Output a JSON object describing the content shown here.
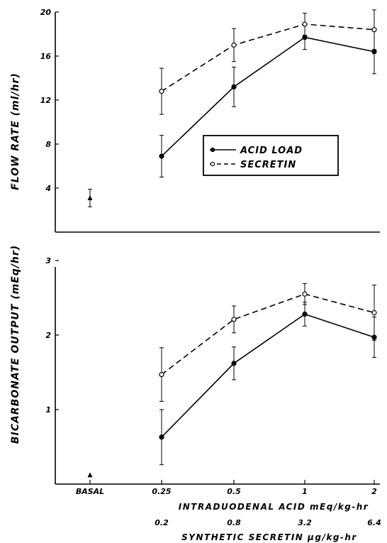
{
  "chart_data": [
    {
      "type": "line",
      "ylabel": "FLOW RATE (ml/hr)",
      "ylim": [
        0,
        20
      ],
      "yticks": [
        4,
        8,
        12,
        16,
        20
      ],
      "ytick_labels": [
        "4",
        "8",
        "12",
        "16",
        "20"
      ],
      "grid": false,
      "legend": {
        "placement": "center-right",
        "entries": [
          {
            "label": "ACID LOAD",
            "style": "solid"
          },
          {
            "label": "SECRETIN",
            "style": "dashed"
          }
        ]
      },
      "basal": {
        "y": 3.1,
        "err": 0.8
      },
      "series": [
        {
          "name": "ACID LOAD",
          "style": "solid",
          "marker": "filled",
          "values": [
            6.9,
            13.2,
            17.7,
            16.4
          ],
          "err": [
            1.9,
            1.8,
            1.1,
            2.0
          ]
        },
        {
          "name": "SECRETIN",
          "style": "dashed",
          "marker": "open",
          "values": [
            12.8,
            17.0,
            18.9,
            18.4
          ],
          "err": [
            2.1,
            1.5,
            1.0,
            1.8
          ]
        }
      ]
    },
    {
      "type": "line",
      "ylabel": "BICARBONATE OUTPUT (mEq/hr)",
      "ylim": [
        0,
        3
      ],
      "yticks": [
        1,
        2,
        3
      ],
      "ytick_labels": [
        "1",
        "2",
        "3"
      ],
      "grid": false,
      "basal": {
        "y": 0.12,
        "err": 0
      },
      "series": [
        {
          "name": "ACID LOAD",
          "style": "solid",
          "marker": "filled",
          "values": [
            0.63,
            1.62,
            2.28,
            1.97
          ],
          "err": [
            0.37,
            0.22,
            0.16,
            0.27
          ]
        },
        {
          "name": "SECRETIN",
          "style": "dashed",
          "marker": "open",
          "values": [
            1.47,
            2.21,
            2.55,
            2.3
          ],
          "err": [
            0.36,
            0.18,
            0.14,
            0.37
          ]
        }
      ]
    }
  ],
  "x_axis": {
    "categories": [
      "BASAL",
      "0.25",
      "0.5",
      "1",
      "2"
    ],
    "acid_label": "INTRADUODENAL ACID mEq/kg-hr",
    "secretin_values": [
      "0.2",
      "0.8",
      "3.2",
      "6.4"
    ],
    "secretin_label": "SYNTHETIC SECRETIN µg/kg-hr"
  }
}
